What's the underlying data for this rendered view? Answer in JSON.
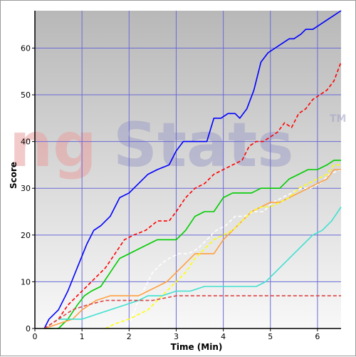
{
  "watermark": {
    "text_left": "ng",
    "text_right": "Stats",
    "trademark": "TM"
  },
  "chart_data": {
    "type": "line",
    "title": "",
    "xlabel": "Time (Min)",
    "ylabel": "Score",
    "xlim": [
      0,
      6.5
    ],
    "ylim": [
      0,
      68
    ],
    "xticks": [
      0,
      1,
      2,
      3,
      4,
      5,
      6
    ],
    "yticks": [
      0,
      10,
      20,
      30,
      40,
      50,
      60
    ],
    "grid": true,
    "legend": "none",
    "colors": {
      "plot_background_top": "#b8b8b8",
      "plot_background_bottom": "#f8f8f8",
      "grid": "#6b6bd8",
      "axis": "#000000"
    },
    "series": [
      {
        "color": "#0000ff",
        "dash": "solid",
        "x": [
          0.2,
          0.3,
          0.5,
          0.7,
          0.9,
          1.1,
          1.25,
          1.4,
          1.6,
          1.8,
          2.0,
          2.2,
          2.4,
          2.6,
          2.85,
          3.0,
          3.15,
          3.4,
          3.65,
          3.8,
          3.95,
          4.1,
          4.25,
          4.35,
          4.5,
          4.65,
          4.8,
          4.95,
          5.1,
          5.25,
          5.4,
          5.5,
          5.65,
          5.75,
          5.9,
          6.05,
          6.2,
          6.35,
          6.5
        ],
        "y": [
          0,
          2,
          4,
          8,
          13,
          18,
          21,
          22,
          24,
          28,
          29,
          31,
          33,
          34,
          35,
          38,
          40,
          40,
          40,
          45,
          45,
          46,
          46,
          45,
          47,
          51,
          57,
          59,
          60,
          61,
          62,
          62,
          63,
          64,
          64,
          65,
          66,
          67,
          68
        ]
      },
      {
        "color": "#ff0000",
        "dash": "dashed",
        "x": [
          0.2,
          0.5,
          0.7,
          0.9,
          1.1,
          1.3,
          1.5,
          1.7,
          1.9,
          2.1,
          2.35,
          2.6,
          2.85,
          3.0,
          3.2,
          3.4,
          3.6,
          3.8,
          4.0,
          4.2,
          4.4,
          4.55,
          4.7,
          4.85,
          5.0,
          5.15,
          5.3,
          5.45,
          5.6,
          5.75,
          5.9,
          6.05,
          6.2,
          6.35,
          6.5
        ],
        "y": [
          0,
          2,
          5,
          7,
          9,
          11,
          13,
          16,
          19,
          20,
          21,
          23,
          23,
          25,
          28,
          30,
          31,
          33,
          34,
          35,
          36,
          39,
          40,
          40,
          41,
          42,
          44,
          43,
          46,
          47,
          49,
          50,
          51,
          53,
          57
        ]
      },
      {
        "color": "#00cc00",
        "dash": "solid",
        "x": [
          0.2,
          0.5,
          0.7,
          0.9,
          1.05,
          1.2,
          1.4,
          1.6,
          1.8,
          2.0,
          2.2,
          2.4,
          2.6,
          2.8,
          3.0,
          3.2,
          3.4,
          3.6,
          3.8,
          4.0,
          4.2,
          4.4,
          4.6,
          4.8,
          5.0,
          5.2,
          5.4,
          5.6,
          5.8,
          6.0,
          6.2,
          6.35,
          6.5
        ],
        "y": [
          0,
          0,
          2,
          5,
          7,
          8,
          9,
          12,
          15,
          16,
          17,
          18,
          19,
          19,
          19,
          21,
          24,
          25,
          25,
          28,
          29,
          29,
          29,
          30,
          30,
          30,
          32,
          33,
          34,
          34,
          35,
          36,
          36
        ]
      },
      {
        "color": "#ffffff",
        "dash": "dashed",
        "x": [
          0.4,
          1.0,
          1.6,
          1.9,
          2.05,
          2.2,
          2.35,
          2.5,
          2.7,
          2.85,
          3.05,
          3.25,
          3.45,
          3.65,
          3.85,
          4.05,
          4.25,
          4.45,
          4.65,
          4.85,
          5.05,
          5.25,
          5.45,
          5.65,
          5.85,
          6.05,
          6.25,
          6.5
        ],
        "y": [
          0,
          0,
          0,
          0,
          2,
          6,
          9,
          12,
          14,
          15,
          16,
          16,
          17,
          19,
          21,
          22,
          24,
          24,
          25,
          25,
          27,
          28,
          29,
          30,
          30,
          31,
          33,
          34
        ]
      },
      {
        "color": "#ffa040",
        "dash": "solid",
        "x": [
          0.2,
          0.5,
          0.8,
          1.0,
          1.3,
          1.6,
          1.9,
          2.2,
          2.4,
          2.6,
          2.8,
          3.0,
          3.2,
          3.4,
          3.6,
          3.8,
          4.0,
          4.2,
          4.4,
          4.6,
          4.8,
          5.0,
          5.2,
          5.4,
          5.6,
          5.8,
          6.0,
          6.2,
          6.35,
          6.5
        ],
        "y": [
          0,
          1,
          2,
          4,
          6,
          7,
          7,
          7,
          8,
          9,
          10,
          12,
          14,
          16,
          16,
          16,
          19,
          21,
          23,
          25,
          26,
          27,
          27,
          28,
          29,
          30,
          31,
          32,
          34,
          34
        ]
      },
      {
        "color": "#ffff00",
        "dash": "dashed",
        "x": [
          1.5,
          1.7,
          2.0,
          2.2,
          2.4,
          2.6,
          2.8,
          3.0,
          3.2,
          3.4,
          3.6,
          3.8,
          4.0,
          4.2,
          4.4,
          4.6,
          4.8,
          5.0,
          5.2,
          5.4,
          5.6,
          5.8,
          6.0,
          6.2,
          6.35,
          6.5
        ],
        "y": [
          0,
          1,
          2,
          3,
          4,
          6,
          8,
          10,
          12,
          15,
          17,
          19,
          20,
          21,
          23,
          25,
          26,
          26,
          27,
          28,
          30,
          31,
          32,
          33,
          35,
          35
        ]
      },
      {
        "color": "#40e0d0",
        "dash": "solid",
        "x": [
          0.5,
          0.7,
          1.0,
          1.3,
          1.6,
          1.9,
          2.2,
          2.4,
          2.7,
          3.0,
          3.3,
          3.6,
          3.9,
          4.2,
          4.5,
          4.7,
          4.9,
          5.1,
          5.3,
          5.5,
          5.7,
          5.9,
          6.1,
          6.3,
          6.5
        ],
        "y": [
          2,
          2,
          2,
          3,
          4,
          5,
          6,
          7,
          7,
          8,
          8,
          9,
          9,
          9,
          9,
          9,
          10,
          12,
          14,
          16,
          18,
          20,
          21,
          23,
          26
        ]
      },
      {
        "color": "#dd4444",
        "dash": "dashed",
        "x": [
          0.2,
          0.5,
          0.8,
          1.1,
          1.5,
          2.0,
          2.5,
          3.0,
          3.5,
          4.0,
          4.5,
          5.0,
          5.5,
          6.0,
          6.5
        ],
        "y": [
          0,
          2,
          4,
          5,
          6,
          6,
          6,
          7,
          7,
          7,
          7,
          7,
          7,
          7,
          7
        ]
      }
    ]
  }
}
